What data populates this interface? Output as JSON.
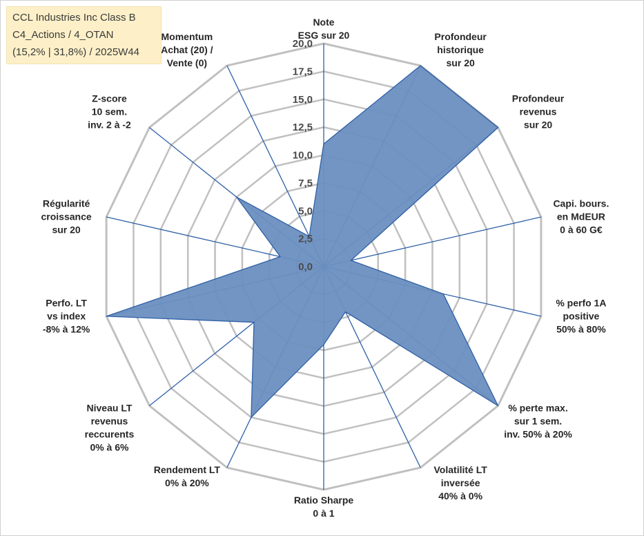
{
  "title_lines": [
    "CCL Industries Inc Class B",
    "C4_Actions / 4_OTAN",
    "(15,2% | 31,8%) / 2025W44"
  ],
  "colors": {
    "fill": "#6b8fc0",
    "stroke": "#2e5fa6",
    "grid": "#c0c0c0",
    "spoke": "#2e5fa6",
    "title_bg": "#fdf0c8"
  },
  "chart_data": {
    "type": "radar",
    "grid": true,
    "rlim": [
      0,
      20
    ],
    "ticks": [
      "0,0",
      "2,5",
      "5,0",
      "7,5",
      "10,0",
      "12,5",
      "15,0",
      "17,5",
      "20,0"
    ],
    "axes": [
      {
        "label": [
          "Note",
          "ESG sur 20"
        ],
        "value": 11
      },
      {
        "label": [
          "Profondeur",
          "historique",
          "sur 20"
        ],
        "value": 20
      },
      {
        "label": [
          "Profondeur",
          "revenus",
          "sur 20"
        ],
        "value": 20
      },
      {
        "label": [
          "Capi. bours.",
          "en MdEUR",
          "0 à 60 G€"
        ],
        "value": 2.5
      },
      {
        "label": [
          "% perfo 1A",
          "positive",
          "50% à 80%"
        ],
        "value": 11
      },
      {
        "label": [
          "% perte max.",
          "sur 1 sem.",
          "inv. 50% à 20%"
        ],
        "value": 20
      },
      {
        "label": [
          "Volatilité LT",
          "inversée",
          "40% à 0%"
        ],
        "value": 4.5
      },
      {
        "label": [
          "Ratio Sharpe",
          "0 à 1"
        ],
        "value": 7
      },
      {
        "label": [
          "Rendement LT",
          "0% à 20%"
        ],
        "value": 15
      },
      {
        "label": [
          "Niveau LT",
          "revenus",
          "reccurents",
          "0% à 6%"
        ],
        "value": 8
      },
      {
        "label": [
          "Perfo. LT",
          "vs index",
          "-8% à 12%"
        ],
        "value": 20
      },
      {
        "label": [
          "Régularité",
          "croissance",
          "sur 20"
        ],
        "value": 4
      },
      {
        "label": [
          "Z-score",
          "10 sem.",
          "inv. 2 à -2"
        ],
        "value": 10
      },
      {
        "label": [
          "Momentum",
          "Achat (20) /",
          "Vente (0)"
        ],
        "value": 3
      }
    ]
  }
}
